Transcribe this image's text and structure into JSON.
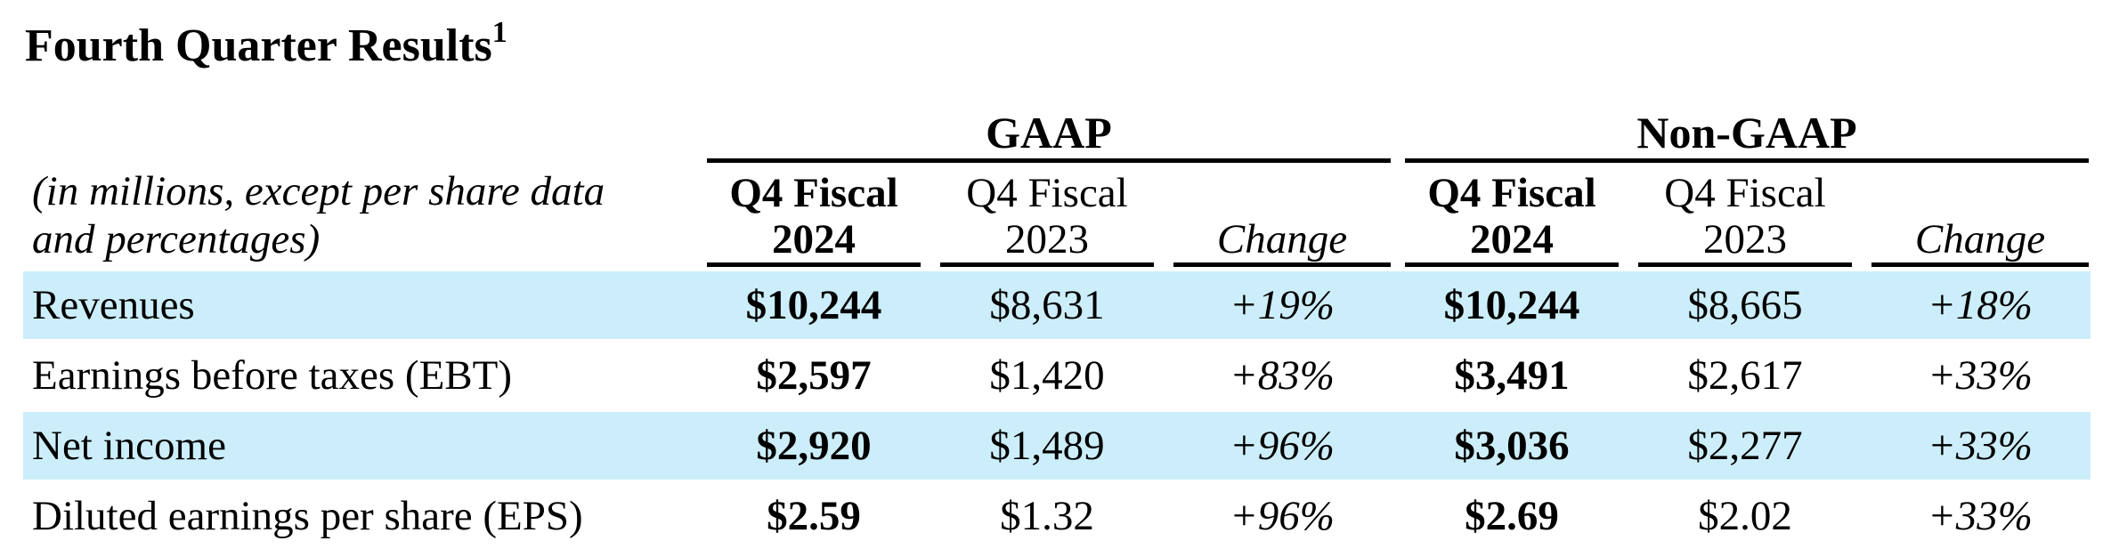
{
  "title": {
    "text": "Fourth Quarter Results",
    "footnote": "1"
  },
  "groups": {
    "gaap": "GAAP",
    "non_gaap": "Non-GAAP"
  },
  "units_note": {
    "line1": "(in millions, except per share data",
    "line2": "and percentages)"
  },
  "columns": {
    "gaap_q4_2024": {
      "line1": "Q4 Fiscal",
      "line2": "2024"
    },
    "gaap_q4_2023": {
      "line1": "Q4 Fiscal",
      "line2": "2023"
    },
    "gaap_change": {
      "line1": "Change"
    },
    "ngaap_q4_2024": {
      "line1": "Q4 Fiscal",
      "line2": "2024"
    },
    "ngaap_q4_2023": {
      "line1": "Q4 Fiscal",
      "line2": "2023"
    },
    "ngaap_change": {
      "line1": "Change"
    }
  },
  "rows": [
    {
      "label": "Revenues",
      "gaap_2024": "$10,244",
      "gaap_2023": "$8,631",
      "gaap_change": "+19%",
      "ngaap_2024": "$10,244",
      "ngaap_2023": "$8,665",
      "ngaap_change": "+18%"
    },
    {
      "label": "Earnings before taxes (EBT)",
      "gaap_2024": "$2,597",
      "gaap_2023": "$1,420",
      "gaap_change": "+83%",
      "ngaap_2024": "$3,491",
      "ngaap_2023": "$2,617",
      "ngaap_change": "+33%"
    },
    {
      "label": "Net income",
      "gaap_2024": "$2,920",
      "gaap_2023": "$1,489",
      "gaap_change": "+96%",
      "ngaap_2024": "$3,036",
      "ngaap_2023": "$2,277",
      "ngaap_change": "+33%"
    },
    {
      "label": "Diluted earnings per share (EPS)",
      "gaap_2024": "$2.59",
      "gaap_2023": "$1.32",
      "gaap_change": "+96%",
      "ngaap_2024": "$2.69",
      "ngaap_2023": "$2.02",
      "ngaap_change": "+33%"
    }
  ],
  "colors": {
    "shaded_row": "#cceefa",
    "text": "#000000"
  }
}
